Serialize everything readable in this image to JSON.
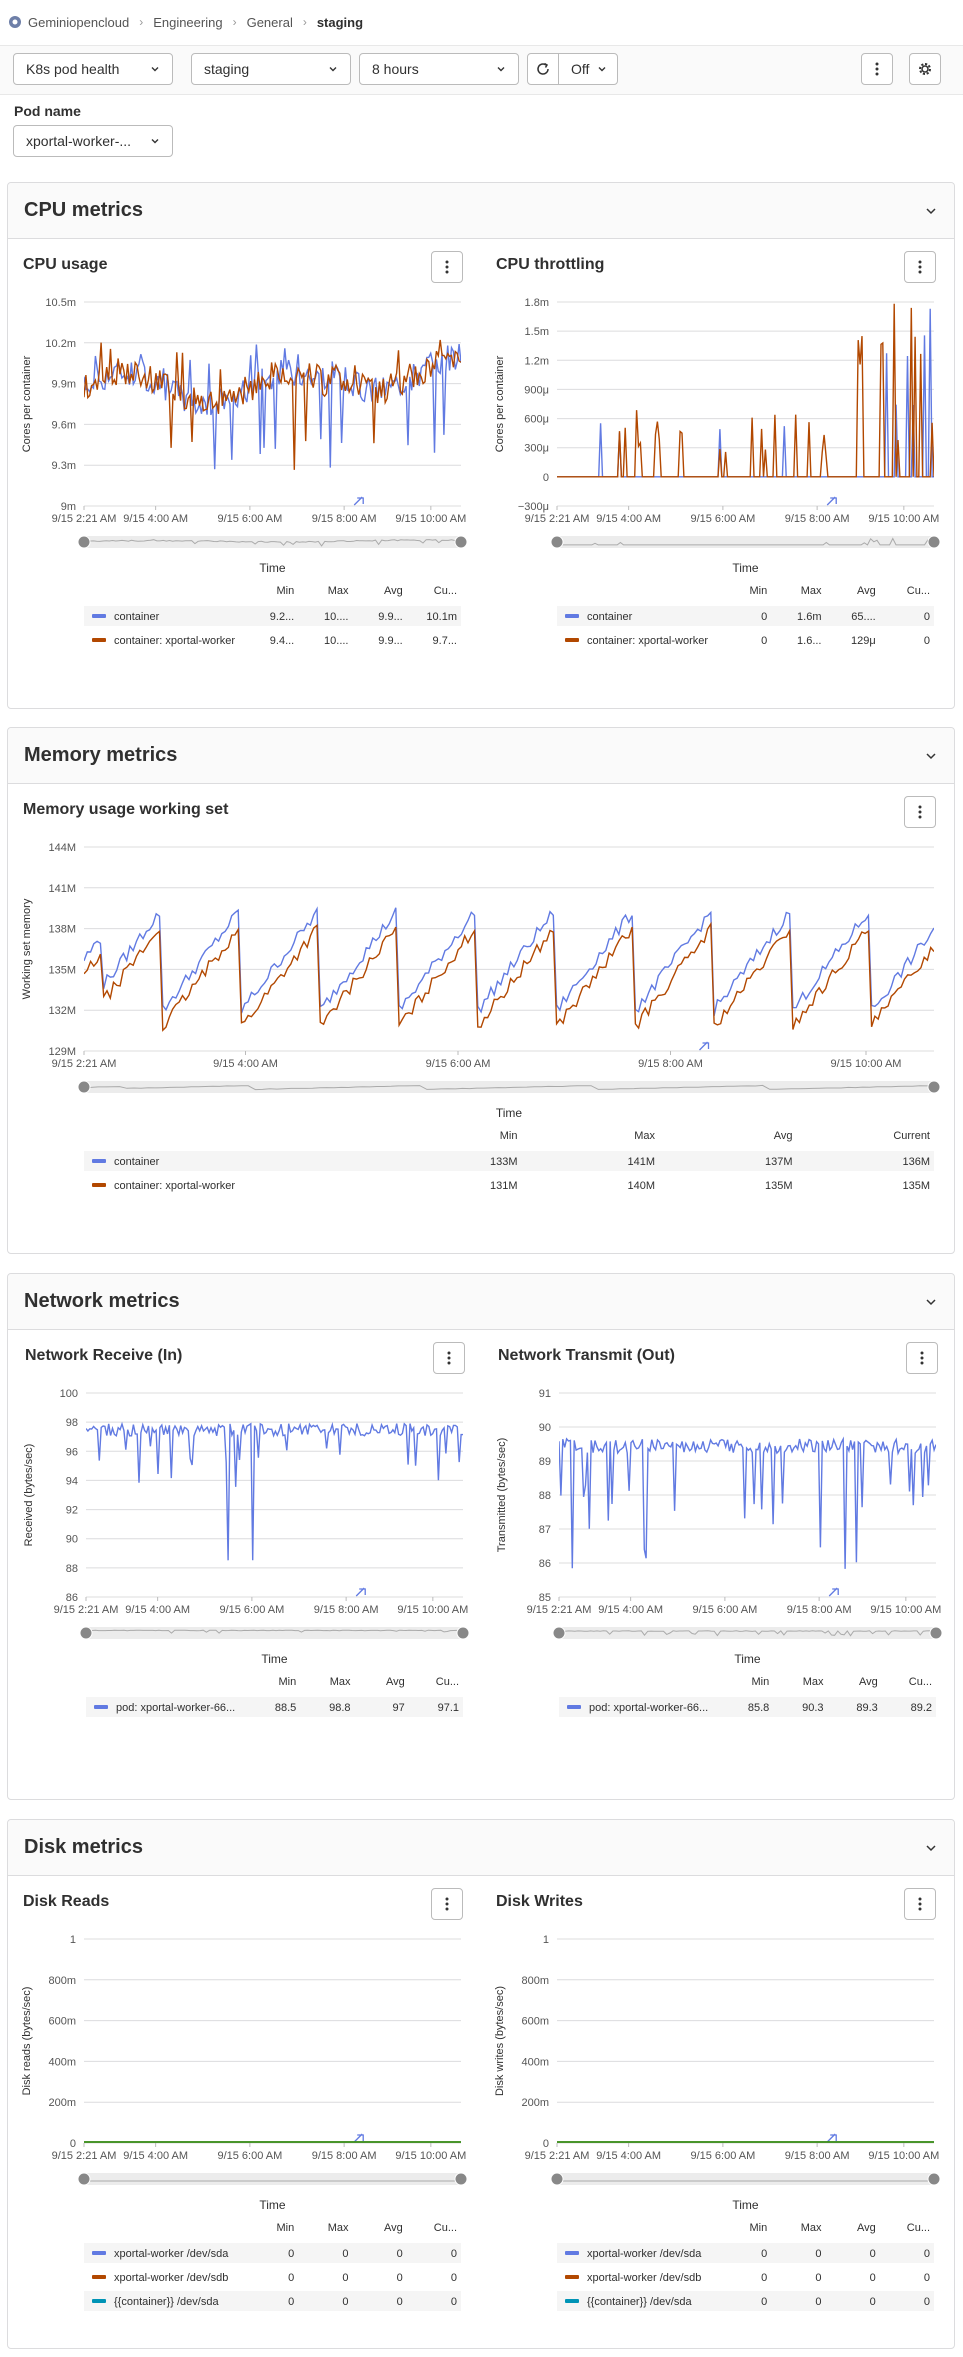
{
  "breadcrumb": {
    "items": [
      "Geminiopencloud",
      "Engineering",
      "General",
      "staging"
    ]
  },
  "toolbar": {
    "dashboard": "K8s pod health",
    "environment": "staging",
    "timerange": "8 hours",
    "refresh_interval": "Off"
  },
  "pod_filter": {
    "label": "Pod name",
    "value": "xportal-worker-..."
  },
  "colors": {
    "blue": "#617ae2",
    "orange": "#b24800",
    "teal": "#0094b6",
    "green": "#3f8f1f",
    "grid": "#dcdcde"
  },
  "panels": [
    {
      "title": "CPU metrics"
    },
    {
      "title": "Memory metrics"
    },
    {
      "title": "Network metrics"
    },
    {
      "title": "Disk metrics"
    }
  ],
  "charts": [
    {
      "id": "cpu_usage",
      "title": "CPU usage",
      "ylabel": "Cores per container",
      "xlabel": "Time",
      "yticks": [
        "9m",
        "9.3m",
        "9.6m",
        "9.9m",
        "10.2m",
        "10.5m"
      ],
      "xticks": [
        "9/15 2:21 AM",
        "9/15 4:00 AM",
        "9/15 6:00 AM",
        "9/15 8:00 AM",
        "9/15 10:00 AM"
      ],
      "legend_headers": [
        "Min",
        "Max",
        "Avg",
        "Cu..."
      ],
      "legend": [
        {
          "name": "container",
          "color": "blue",
          "min": "9.2...",
          "max": "10....",
          "avg": "9.9...",
          "current": "10.1m"
        },
        {
          "name": "container: xportal-worker",
          "color": "orange",
          "min": "9.4...",
          "max": "10....",
          "avg": "9.9...",
          "current": "9.7..."
        }
      ]
    },
    {
      "id": "cpu_throttling",
      "title": "CPU throttling",
      "ylabel": "Cores per container",
      "xlabel": "Time",
      "yticks": [
        "−300μ",
        "0",
        "300μ",
        "600μ",
        "900μ",
        "1.2m",
        "1.5m",
        "1.8m"
      ],
      "xticks": [
        "9/15 2:21 AM",
        "9/15 4:00 AM",
        "9/15 6:00 AM",
        "9/15 8:00 AM",
        "9/15 10:00 AM"
      ],
      "legend_headers": [
        "Min",
        "Max",
        "Avg",
        "Cu..."
      ],
      "legend": [
        {
          "name": "container",
          "color": "blue",
          "min": "0",
          "max": "1.6m",
          "avg": "65....",
          "current": "0"
        },
        {
          "name": "container: xportal-worker",
          "color": "orange",
          "min": "0",
          "max": "1.6...",
          "avg": "129μ",
          "current": "0"
        }
      ]
    },
    {
      "id": "memory",
      "title": "Memory usage working set",
      "ylabel": "Working set memory",
      "xlabel": "Time",
      "yticks": [
        "129M",
        "132M",
        "135M",
        "138M",
        "141M",
        "144M"
      ],
      "xticks": [
        "9/15 2:21 AM",
        "9/15 4:00 AM",
        "9/15 6:00 AM",
        "9/15 8:00 AM",
        "9/15 10:00 AM"
      ],
      "legend_headers": [
        "Min",
        "Max",
        "Avg",
        "Current"
      ],
      "legend": [
        {
          "name": "container",
          "color": "blue",
          "min": "133M",
          "max": "141M",
          "avg": "137M",
          "current": "136M"
        },
        {
          "name": "container: xportal-worker",
          "color": "orange",
          "min": "131M",
          "max": "140M",
          "avg": "135M",
          "current": "135M"
        }
      ]
    },
    {
      "id": "net_in",
      "title": "Network Receive (In)",
      "ylabel": "Received (bytes/sec)",
      "xlabel": "Time",
      "yticks": [
        "86",
        "88",
        "90",
        "92",
        "94",
        "96",
        "98",
        "100"
      ],
      "xticks": [
        "9/15 2:21 AM",
        "9/15 4:00 AM",
        "9/15 6:00 AM",
        "9/15 8:00 AM",
        "9/15 10:00 AM"
      ],
      "legend_headers": [
        "Min",
        "Max",
        "Avg",
        "Cu..."
      ],
      "legend": [
        {
          "name": "pod: xportal-worker-66...",
          "color": "blue",
          "min": "88.5",
          "max": "98.8",
          "avg": "97",
          "current": "97.1"
        }
      ]
    },
    {
      "id": "net_out",
      "title": "Network Transmit (Out)",
      "ylabel": "Transmitted (bytes/sec)",
      "xlabel": "Time",
      "yticks": [
        "85",
        "86",
        "87",
        "88",
        "89",
        "90",
        "91"
      ],
      "xticks": [
        "9/15 2:21 AM",
        "9/15 4:00 AM",
        "9/15 6:00 AM",
        "9/15 8:00 AM",
        "9/15 10:00 AM"
      ],
      "legend_headers": [
        "Min",
        "Max",
        "Avg",
        "Cu..."
      ],
      "legend": [
        {
          "name": "pod: xportal-worker-66...",
          "color": "blue",
          "min": "85.8",
          "max": "90.3",
          "avg": "89.3",
          "current": "89.2"
        }
      ]
    },
    {
      "id": "disk_reads",
      "title": "Disk Reads",
      "ylabel": "Disk reads (bytes/sec)",
      "xlabel": "Time",
      "yticks": [
        "0",
        "200m",
        "400m",
        "600m",
        "800m",
        "1"
      ],
      "xticks": [
        "9/15 2:21 AM",
        "9/15 4:00 AM",
        "9/15 6:00 AM",
        "9/15 8:00 AM",
        "9/15 10:00 AM"
      ],
      "legend_headers": [
        "Min",
        "Max",
        "Avg",
        "Cu..."
      ],
      "legend": [
        {
          "name": "xportal-worker /dev/sda",
          "color": "blue",
          "min": "0",
          "max": "0",
          "avg": "0",
          "current": "0"
        },
        {
          "name": "xportal-worker /dev/sdb",
          "color": "orange",
          "min": "0",
          "max": "0",
          "avg": "0",
          "current": "0"
        },
        {
          "name": "{{container}} /dev/sda",
          "color": "teal",
          "min": "0",
          "max": "0",
          "avg": "0",
          "current": "0"
        }
      ]
    },
    {
      "id": "disk_writes",
      "title": "Disk Writes",
      "ylabel": "Disk writes (bytes/sec)",
      "xlabel": "Time",
      "yticks": [
        "0",
        "200m",
        "400m",
        "600m",
        "800m",
        "1"
      ],
      "xticks": [
        "9/15 2:21 AM",
        "9/15 4:00 AM",
        "9/15 6:00 AM",
        "9/15 8:00 AM",
        "9/15 10:00 AM"
      ],
      "legend_headers": [
        "Min",
        "Max",
        "Avg",
        "Cu..."
      ],
      "legend": [
        {
          "name": "xportal-worker /dev/sda",
          "color": "blue",
          "min": "0",
          "max": "0",
          "avg": "0",
          "current": "0"
        },
        {
          "name": "xportal-worker /dev/sdb",
          "color": "orange",
          "min": "0",
          "max": "0",
          "avg": "0",
          "current": "0"
        },
        {
          "name": "{{container}} /dev/sda",
          "color": "teal",
          "min": "0",
          "max": "0",
          "avg": "0",
          "current": "0"
        }
      ]
    }
  ],
  "chart_data": [
    {
      "type": "line",
      "title": "CPU usage",
      "ylabel": "Cores per container",
      "xlabel": "Time",
      "ylim": [
        "9m",
        "10.5m"
      ],
      "series": [
        {
          "name": "container",
          "range": [
            9.2,
            10.4
          ],
          "typical": 9.9
        },
        {
          "name": "container: xportal-worker",
          "range": [
            9.4,
            10.4
          ],
          "typical": 9.9
        }
      ]
    },
    {
      "type": "line",
      "title": "CPU throttling",
      "ylabel": "Cores per container",
      "xlabel": "Time",
      "ylim": [
        "-300μ",
        "1.8m"
      ],
      "series": [
        {
          "name": "container",
          "max_ms": 1.6,
          "typical": 0
        },
        {
          "name": "container: xportal-worker",
          "max_ms": 1.6,
          "typical": 0
        }
      ]
    },
    {
      "type": "line",
      "title": "Memory usage working set",
      "ylabel": "Working set memory",
      "xlabel": "Time",
      "ylim": [
        "129M",
        "144M"
      ],
      "series": [
        {
          "name": "container",
          "range": [
            133,
            141
          ]
        },
        {
          "name": "container: xportal-worker",
          "range": [
            131,
            140
          ]
        }
      ]
    },
    {
      "type": "line",
      "title": "Network Receive (In)",
      "ylabel": "Received (bytes/sec)",
      "xlabel": "Time",
      "ylim": [
        86,
        100
      ],
      "series": [
        {
          "name": "pod: xportal-worker-66...",
          "range": [
            88.5,
            98.8
          ],
          "typical": 97
        }
      ]
    },
    {
      "type": "line",
      "title": "Network Transmit (Out)",
      "ylabel": "Transmitted (bytes/sec)",
      "xlabel": "Time",
      "ylim": [
        85,
        91
      ],
      "series": [
        {
          "name": "pod: xportal-worker-66...",
          "range": [
            85.8,
            90.3
          ],
          "typical": 89.3
        }
      ]
    },
    {
      "type": "line",
      "title": "Disk Reads",
      "ylabel": "Disk reads (bytes/sec)",
      "xlabel": "Time",
      "ylim": [
        0,
        1
      ],
      "series": [
        {
          "name": "xportal-worker /dev/sda",
          "value": 0
        },
        {
          "name": "xportal-worker /dev/sdb",
          "value": 0
        },
        {
          "name": "{{container}} /dev/sda",
          "value": 0
        }
      ]
    },
    {
      "type": "line",
      "title": "Disk Writes",
      "ylabel": "Disk writes (bytes/sec)",
      "xlabel": "Time",
      "ylim": [
        0,
        1
      ],
      "series": [
        {
          "name": "xportal-worker /dev/sda",
          "value": 0
        },
        {
          "name": "xportal-worker /dev/sdb",
          "value": 0
        },
        {
          "name": "{{container}} /dev/sda",
          "value": 0
        }
      ]
    }
  ]
}
